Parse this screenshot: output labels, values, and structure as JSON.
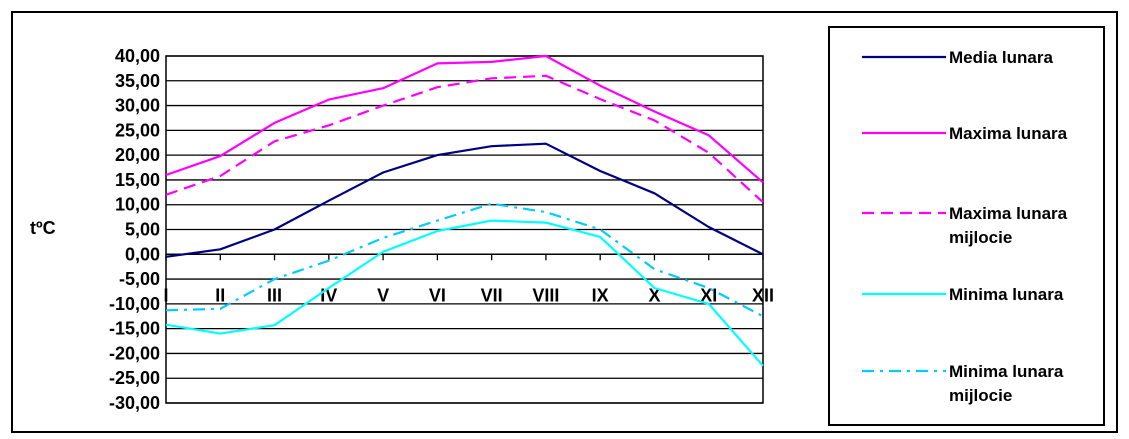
{
  "chart_data": {
    "type": "line",
    "categories": [
      "I",
      "II",
      "III",
      "IV",
      "V",
      "VI",
      "VII",
      "VIII",
      "IX",
      "X",
      "XI",
      "XII"
    ],
    "ylabel": "tºC",
    "ylim": [
      -30,
      40
    ],
    "yticks": [
      "40,00",
      "35,00",
      "30,00",
      "25,00",
      "20,00",
      "15,00",
      "10,00",
      "5,00",
      "0,00",
      "-5,00",
      "-10,00",
      "-15,00",
      "-20,00",
      "-25,00",
      "-30,00"
    ],
    "grid": true,
    "legend_position": "right",
    "series": [
      {
        "name": "Media lunara",
        "color": "#000080",
        "dash": "solid",
        "values": [
          -0.5,
          1.0,
          5.0,
          10.8,
          16.5,
          20.0,
          21.8,
          22.3,
          16.8,
          12.3,
          5.5,
          0.0
        ]
      },
      {
        "name": "Maxima lunara",
        "color": "#ff00ff",
        "dash": "solid",
        "values": [
          16.0,
          19.8,
          26.5,
          31.2,
          33.5,
          38.5,
          38.8,
          40.0,
          34.0,
          28.8,
          24.0,
          14.5
        ]
      },
      {
        "name": "Maxima lunara mijlocie",
        "color": "#ff00ff",
        "dash": "dash",
        "values": [
          12.0,
          15.8,
          22.8,
          26.0,
          30.0,
          33.7,
          35.5,
          36.0,
          31.3,
          27.0,
          20.5,
          10.5
        ]
      },
      {
        "name": "Minima lunara",
        "color": "#00ffff",
        "dash": "solid",
        "values": [
          -14.2,
          -16.0,
          -14.3,
          -6.8,
          0.5,
          4.7,
          6.8,
          6.4,
          3.5,
          -6.8,
          -10.0,
          -22.5
        ]
      },
      {
        "name": "Minima lunara mijlocie",
        "color": "#00ccff",
        "dash": "dashdot",
        "values": [
          -11.3,
          -11.0,
          -5.0,
          -1.3,
          3.3,
          6.8,
          10.2,
          8.5,
          5.0,
          -3.0,
          -6.8,
          -12.5
        ]
      }
    ]
  }
}
